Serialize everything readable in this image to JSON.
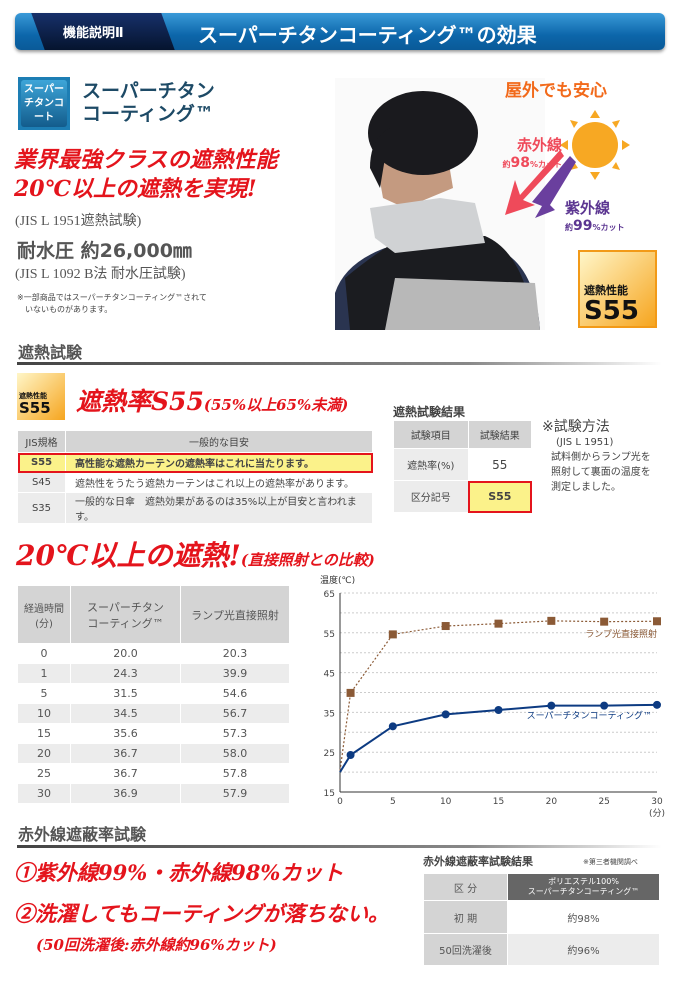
{
  "header": {
    "tag": "機能説明Ⅱ",
    "title": "スーパーチタンコーティング™の効果"
  },
  "logo": {
    "text": "スーパーチタンコート"
  },
  "product": {
    "line1": "スーパーチタン",
    "line2": "コーティング™"
  },
  "headline": {
    "line1": "業界最強クラスの遮熱性能",
    "line2": "20℃以上の遮熱を実現!",
    "test": "(JIS L 1951遮熱試験)"
  },
  "water": {
    "text": "耐水圧 約26,000㎜",
    "test": "(JIS L 1092 B法 耐水圧試験)"
  },
  "note": {
    "line1": "※一部商品ではスーパーチタンコーティング™されて",
    "line2": "いないものがあります。"
  },
  "outdoor": {
    "title": "屋外でも安心",
    "ir": "赤外線",
    "ir_val": "約98%カット",
    "ir_num": "98",
    "uv": "紫外線",
    "uv_num": "99",
    "cut": "カット",
    "approx": "約",
    "pct": "%"
  },
  "badge": {
    "label": "遮熱性能",
    "value": "S55"
  },
  "heat_section": {
    "title": "遮熱試験",
    "rate": "遮熱率S55",
    "range": "(55%以上65%未満)",
    "jis_table": {
      "headers": [
        "JIS規格",
        "一般的な目安"
      ],
      "rows": [
        [
          "S55",
          "高性能な遮熱カーテンの遮熱率はこれに当たります。"
        ],
        [
          "S45",
          "遮熱性をうたう遮熱カーテンはこれ以上の遮熱率があります。"
        ],
        [
          "S35",
          "一般的な日傘　遮熱効果があるのは35%以上が目安と言われます。"
        ]
      ]
    },
    "result_title": "遮熱試験結果",
    "result_table": {
      "headers": [
        "試験項目",
        "試験結果"
      ],
      "rows": [
        [
          "遮熱率(%)",
          "55"
        ],
        [
          "区分記号",
          "S55"
        ]
      ]
    },
    "method_title": "※試験方法",
    "method_std": "(JIS L 1951)",
    "method_l1": "試料側からランプ光を",
    "method_l2": "照射して裏面の温度を",
    "method_l3": "測定しました。"
  },
  "compare": {
    "title": "20℃以上の遮熱!",
    "sub": "(直接照射との比較)",
    "table": {
      "h0a": "経過時間",
      "h0b": "(分)",
      "h1a": "スーパーチタン",
      "h1b": "コーティング™",
      "h2": "ランプ光直接照射",
      "rows": [
        [
          "0",
          "20.0",
          "20.3"
        ],
        [
          "1",
          "24.3",
          "39.9"
        ],
        [
          "5",
          "31.5",
          "54.6"
        ],
        [
          "10",
          "34.5",
          "56.7"
        ],
        [
          "15",
          "35.6",
          "57.3"
        ],
        [
          "20",
          "36.7",
          "58.0"
        ],
        [
          "25",
          "36.7",
          "57.8"
        ],
        [
          "30",
          "36.9",
          "57.9"
        ]
      ]
    }
  },
  "chart_data": {
    "type": "line",
    "ylabel": "温度(℃)",
    "xlabel": "(分)",
    "ylim": [
      15,
      65
    ],
    "xlim": [
      0,
      30
    ],
    "yticks": [
      "15",
      "25",
      "35",
      "45",
      "55",
      "65"
    ],
    "xticks": [
      "0",
      "5",
      "10",
      "15",
      "20",
      "25",
      "30"
    ],
    "grid": true,
    "x": [
      0,
      1,
      5,
      10,
      15,
      20,
      25,
      30
    ],
    "series": [
      {
        "name": "ランプ光直接照射",
        "values": [
          20.3,
          39.9,
          54.6,
          56.7,
          57.3,
          58.0,
          57.8,
          57.9
        ],
        "color": "#8b5a36"
      },
      {
        "name": "スーパーチタンコーティング™",
        "values": [
          20.0,
          24.3,
          31.5,
          34.5,
          35.6,
          36.7,
          36.7,
          36.9
        ],
        "color": "#0d3b82"
      }
    ]
  },
  "ir_section": {
    "title": "赤外線遮蔽率試験",
    "claim1": "①紫外線99%・赤外線98%カット",
    "claim2": "②洗濯してもコーティングが落ちない。",
    "claim3": "(50回洗濯後:赤外線約96%カット)",
    "result_title": "赤外線遮蔽率試験結果",
    "result_note": "※第三者機関調べ",
    "table": {
      "h0": "区 分",
      "h1a": "ポリエステル100%",
      "h1b": "スーパーチタンコーティング™",
      "rows": [
        [
          "初 期",
          "約98%"
        ],
        [
          "50回洗濯後",
          "約96%"
        ]
      ]
    }
  },
  "colors": {
    "red": "#e4141c",
    "blue": "#0c66aa",
    "highlight": "#fbf28a"
  }
}
